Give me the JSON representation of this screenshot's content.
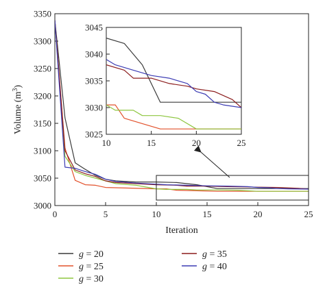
{
  "chart_data": {
    "type": "line",
    "xlabel": "Iteration",
    "ylabel": "Volume (m",
    "ylabel_sup": "3",
    "ylabel_close": ")",
    "xlim": [
      0,
      25
    ],
    "ylim": [
      3000,
      3350
    ],
    "x_ticks": [
      0,
      5,
      10,
      15,
      20,
      25
    ],
    "y_ticks": [
      3000,
      3050,
      3100,
      3150,
      3200,
      3250,
      3300,
      3350
    ],
    "legend_position": "bottom",
    "series": [
      {
        "name": "g = 20",
        "name_var": "g",
        "name_rest": " = 20",
        "color": "#3a3a3a",
        "points": [
          [
            0,
            3338
          ],
          [
            1,
            3160
          ],
          [
            2,
            3078
          ],
          [
            3,
            3066
          ],
          [
            4,
            3055
          ],
          [
            5,
            3048
          ],
          [
            6,
            3045
          ],
          [
            8,
            3043
          ],
          [
            10,
            3043
          ],
          [
            12,
            3042
          ],
          [
            14,
            3038
          ],
          [
            16,
            3031
          ],
          [
            18,
            3031
          ],
          [
            20,
            3031
          ],
          [
            22,
            3031
          ],
          [
            25,
            3031
          ]
        ]
      },
      {
        "name": "g = 25",
        "name_var": "g",
        "name_rest": " = 25",
        "color": "#e2502a",
        "points": [
          [
            0,
            3338
          ],
          [
            1,
            3105
          ],
          [
            2,
            3046
          ],
          [
            3,
            3038
          ],
          [
            4,
            3037
          ],
          [
            5,
            3033
          ],
          [
            7,
            3032
          ],
          [
            10,
            3030.5
          ],
          [
            11,
            3030.5
          ],
          [
            12,
            3028
          ],
          [
            14,
            3027
          ],
          [
            16,
            3026
          ],
          [
            18,
            3026
          ],
          [
            20,
            3026
          ],
          [
            22,
            3026
          ],
          [
            25,
            3026
          ]
        ]
      },
      {
        "name": "g = 30",
        "name_var": "g",
        "name_rest": " = 30",
        "color": "#8dc63f",
        "points": [
          [
            0,
            3338
          ],
          [
            1,
            3090
          ],
          [
            2,
            3062
          ],
          [
            3,
            3055
          ],
          [
            4,
            3050
          ],
          [
            5,
            3045
          ],
          [
            6,
            3040
          ],
          [
            8,
            3037
          ],
          [
            10,
            3030.5
          ],
          [
            11,
            3029.5
          ],
          [
            13,
            3029.5
          ],
          [
            14,
            3028.5
          ],
          [
            16,
            3028.5
          ],
          [
            18,
            3028
          ],
          [
            20,
            3026
          ],
          [
            25,
            3026
          ]
        ]
      },
      {
        "name": "g = 35",
        "name_var": "g",
        "name_rest": " = 35",
        "color": "#8b1c1c",
        "points": [
          [
            0,
            3338
          ],
          [
            1,
            3100
          ],
          [
            2,
            3065
          ],
          [
            3,
            3058
          ],
          [
            4,
            3053
          ],
          [
            5,
            3045
          ],
          [
            6,
            3042
          ],
          [
            8,
            3040
          ],
          [
            10,
            3038
          ],
          [
            12,
            3037
          ],
          [
            13,
            3035.5
          ],
          [
            15,
            3035.5
          ],
          [
            17,
            3034.5
          ],
          [
            19,
            3034
          ],
          [
            20,
            3033.5
          ],
          [
            22,
            3033
          ],
          [
            24,
            3031.5
          ],
          [
            25,
            3030
          ]
        ]
      },
      {
        "name": "g = 40",
        "name_var": "g",
        "name_rest": " = 40",
        "color": "#3b3bb3",
        "points": [
          [
            0,
            3338
          ],
          [
            1,
            3070
          ],
          [
            2,
            3068
          ],
          [
            3,
            3062
          ],
          [
            4,
            3057
          ],
          [
            5,
            3048
          ],
          [
            6,
            3044
          ],
          [
            8,
            3041
          ],
          [
            10,
            3039
          ],
          [
            11,
            3038
          ],
          [
            13,
            3037
          ],
          [
            15,
            3036
          ],
          [
            17,
            3035.5
          ],
          [
            19,
            3034.5
          ],
          [
            20,
            3033
          ],
          [
            21,
            3032.5
          ],
          [
            22,
            3031
          ],
          [
            23,
            3030.5
          ],
          [
            25,
            3030
          ]
        ]
      }
    ],
    "inset": {
      "xlim": [
        10,
        25
      ],
      "ylim": [
        3025,
        3045
      ],
      "x_ticks": [
        10,
        15,
        20,
        25
      ],
      "y_ticks": [
        3025,
        3030,
        3035,
        3040,
        3045
      ]
    },
    "zoom_box": {
      "xlim": [
        10,
        25
      ],
      "ylim": [
        3010,
        3055
      ]
    }
  }
}
